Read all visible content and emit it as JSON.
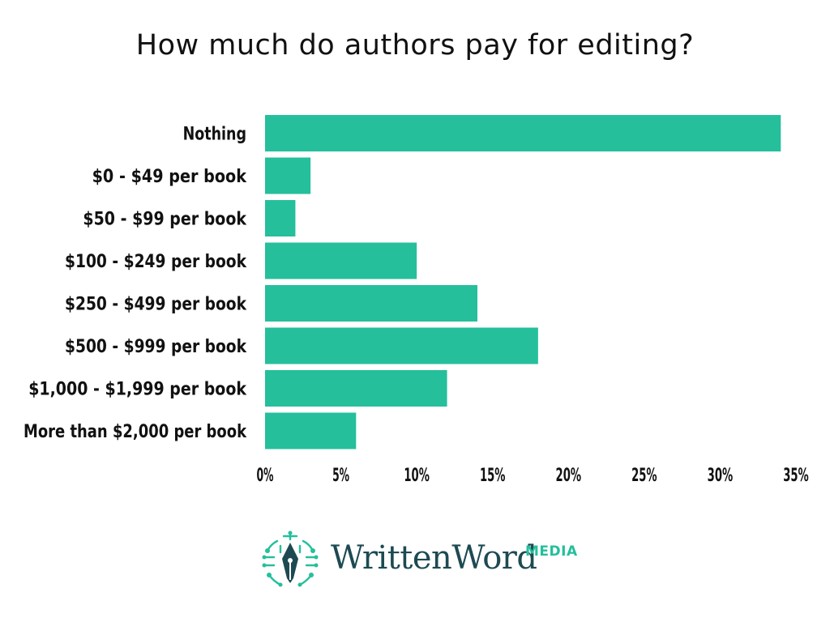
{
  "chart_data": {
    "type": "bar",
    "orientation": "horizontal",
    "title": "How much do authors pay for editing?",
    "categories": [
      "Nothing",
      "$0 - $49 per book",
      "$50 - $99 per book",
      "$100 - $249 per book",
      "$250 - $499 per book",
      "$500 - $999 per book",
      "$1,000 - $1,999 per book",
      "More than $2,000 per book"
    ],
    "values": [
      34,
      3,
      2,
      10,
      14,
      18,
      12,
      6
    ],
    "value_unit": "%",
    "xlim": [
      0,
      35
    ],
    "xticks": [
      0,
      5,
      10,
      15,
      20,
      25,
      30,
      35
    ],
    "xtick_labels": [
      "0%",
      "5%",
      "10%",
      "15%",
      "20%",
      "25%",
      "30%",
      "35%"
    ],
    "xlabel": "",
    "ylabel": "",
    "grid": false,
    "legend": "none",
    "bar_color": "#25bf9c"
  },
  "logo": {
    "wordmark": "WrittenWord",
    "suffix": "MEDIA",
    "brand_color": "#1d4a52",
    "accent_color": "#25bf9c",
    "icon": "fountain-pen-circuit-icon"
  }
}
